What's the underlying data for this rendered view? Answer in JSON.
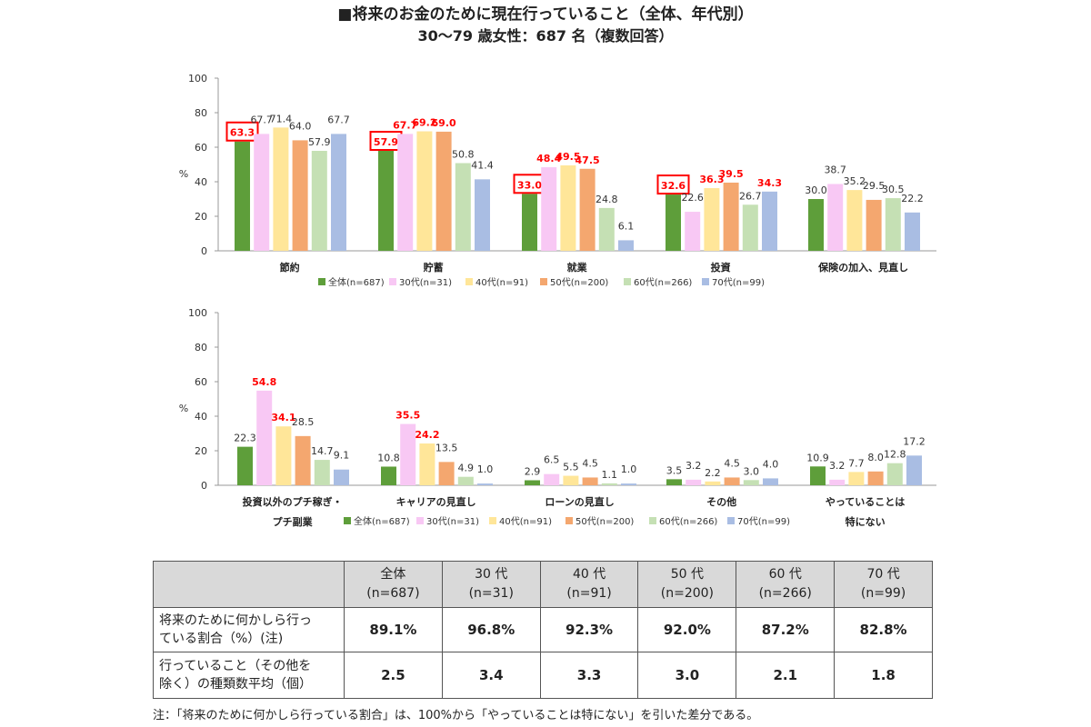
{
  "title": "■将来のお金のために現在行っていること（全体、年代別）",
  "subtitle": "30〜79 歳女性：687 名（複数回答）",
  "colors": {
    "series": [
      "#5e9e3a",
      "#f8c8f4",
      "#ffe699",
      "#f4a76f",
      "#c5e0b4",
      "#a9bde3"
    ],
    "highlight": "#ff0000",
    "axis": "#999999"
  },
  "chart_data": [
    {
      "type": "bar",
      "ylabel": "%",
      "ylim": [
        0,
        100
      ],
      "yticks": [
        "0",
        "20",
        "40",
        "60",
        "80",
        "100"
      ],
      "categories": [
        "節約",
        "貯蓄",
        "就業",
        "投資",
        "保険の加入、見直し"
      ],
      "series": [
        {
          "name": "全体(n=687)",
          "values": [
            63.3,
            57.9,
            33.0,
            32.6,
            30.0
          ],
          "labels": [
            "63.3",
            "57.9",
            "33.0",
            "32.6",
            "30.0"
          ]
        },
        {
          "name": "30代(n=31)",
          "values": [
            67.7,
            67.7,
            48.4,
            22.6,
            38.7
          ],
          "labels": [
            "67.7",
            "67.7",
            "48.4",
            "22.6",
            "38.7"
          ]
        },
        {
          "name": "40代(n=91)",
          "values": [
            71.4,
            69.2,
            49.5,
            36.3,
            35.2
          ],
          "labels": [
            "71.4",
            "69.2",
            "49.5",
            "36.3",
            "35.2"
          ]
        },
        {
          "name": "50代(n=200)",
          "values": [
            64.0,
            69.0,
            47.5,
            39.5,
            29.5
          ],
          "labels": [
            "64.0",
            "69.0",
            "47.5",
            "39.5",
            "29.5"
          ]
        },
        {
          "name": "60代(n=266)",
          "values": [
            57.9,
            50.8,
            24.8,
            26.7,
            30.5
          ],
          "labels": [
            "57.9",
            "50.8",
            "24.8",
            "26.7",
            "30.5"
          ]
        },
        {
          "name": "70代(n=99)",
          "values": [
            67.7,
            41.4,
            6.1,
            34.3,
            22.2
          ],
          "labels": [
            "67.7",
            "41.4",
            "6.1",
            "34.3",
            "22.2"
          ]
        }
      ],
      "boxed_labels": [
        [
          0,
          0
        ],
        [
          1,
          0
        ],
        [
          2,
          0
        ],
        [
          3,
          0
        ]
      ],
      "red_labels": [
        [
          1,
          1
        ],
        [
          1,
          2
        ],
        [
          1,
          3
        ],
        [
          2,
          1
        ],
        [
          2,
          2
        ],
        [
          2,
          3
        ],
        [
          3,
          2
        ],
        [
          3,
          3
        ],
        [
          3,
          5
        ]
      ]
    },
    {
      "type": "bar",
      "ylabel": "%",
      "ylim": [
        0,
        100
      ],
      "yticks": [
        "0",
        "20",
        "40",
        "60",
        "80",
        "100"
      ],
      "categories": [
        "投資以外のプチ稼ぎ・プチ副業",
        "キャリアの見直し",
        "ローンの見直し",
        "その他",
        "やっていることは特にない"
      ],
      "category_lines": [
        [
          "投資以外のプチ稼ぎ・",
          "プチ副業"
        ],
        [
          "キャリアの見直し"
        ],
        [
          "ローンの見直し"
        ],
        [
          "その他"
        ],
        [
          "やっていることは",
          "特にない"
        ]
      ],
      "series": [
        {
          "name": "全体(n=687)",
          "values": [
            22.3,
            10.8,
            2.9,
            3.5,
            10.9
          ],
          "labels": [
            "22.3",
            "10.8",
            "2.9",
            "3.5",
            "10.9"
          ]
        },
        {
          "name": "30代(n=31)",
          "values": [
            54.8,
            35.5,
            6.5,
            3.2,
            3.2
          ],
          "labels": [
            "54.8",
            "35.5",
            "6.5",
            "3.2",
            "3.2"
          ]
        },
        {
          "name": "40代(n=91)",
          "values": [
            34.1,
            24.2,
            5.5,
            2.2,
            7.7
          ],
          "labels": [
            "34.1",
            "24.2",
            "5.5",
            "2.2",
            "7.7"
          ]
        },
        {
          "name": "50代(n=200)",
          "values": [
            28.5,
            13.5,
            4.5,
            4.5,
            8.0
          ],
          "labels": [
            "28.5",
            "13.5",
            "4.5",
            "4.5",
            "8.0"
          ]
        },
        {
          "name": "60代(n=266)",
          "values": [
            14.7,
            4.9,
            1.1,
            3.0,
            12.8
          ],
          "labels": [
            "14.7",
            "4.9",
            "1.1",
            "3.0",
            "12.8"
          ]
        },
        {
          "name": "70代(n=99)",
          "values": [
            9.1,
            1.0,
            1.0,
            4.0,
            17.2
          ],
          "labels": [
            "9.1",
            "1.0",
            "1.0",
            "4.0",
            "17.2"
          ]
        }
      ],
      "boxed_labels": [],
      "red_labels": [
        [
          0,
          1
        ],
        [
          0,
          2
        ],
        [
          1,
          1
        ],
        [
          1,
          2
        ]
      ]
    }
  ],
  "table": {
    "headers": [
      {
        "line1": "全体",
        "line2": "(n=687)"
      },
      {
        "line1": "30 代",
        "line2": "(n=31)"
      },
      {
        "line1": "40 代",
        "line2": "(n=91)"
      },
      {
        "line1": "50 代",
        "line2": "(n=200)"
      },
      {
        "line1": "60 代",
        "line2": "(n=266)"
      },
      {
        "line1": "70 代",
        "line2": "(n=99)"
      }
    ],
    "rows": [
      {
        "label_line1": "将来のために何かしら行っ",
        "label_line2": "ている割合（%）(注)",
        "values": [
          "89.1%",
          "96.8%",
          "92.3%",
          "92.0%",
          "87.2%",
          "82.8%"
        ]
      },
      {
        "label_line1": "行っていること（その他を",
        "label_line2": "除く）の種類数平均（個）",
        "values": [
          "2.5",
          "3.4",
          "3.3",
          "3.0",
          "2.1",
          "1.8"
        ]
      }
    ]
  },
  "note": "注：「将来のために何かしら行っている割合」は、100%から「やっていることは特にない」を引いた差分である。"
}
